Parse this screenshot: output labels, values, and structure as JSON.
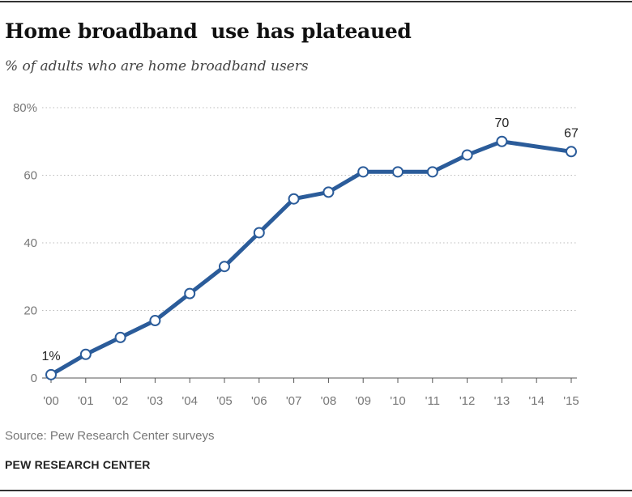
{
  "header": {
    "title": "Home broadband  use has plateaued",
    "subtitle": "% of adults who are home broadband users"
  },
  "footer": {
    "source": "Source: Pew Research Center surveys",
    "brand": "PEW RESEARCH CENTER"
  },
  "colors": {
    "line": "#2b5c9a",
    "grid": "#bbbbbb",
    "axis": "#555555"
  },
  "chart_data": {
    "type": "line",
    "title": "Home broadband  use has plateaued",
    "subtitle": "% of adults who are home broadband users",
    "categories": [
      "'00",
      "'01",
      "'02",
      "'03",
      "'04",
      "'05",
      "'06",
      "'07",
      "'08",
      "'09",
      "'10",
      "'11",
      "'12",
      "'13",
      "'14",
      "'15"
    ],
    "x": [
      2000,
      2001,
      2002,
      2003,
      2004,
      2005,
      2006,
      2007,
      2008,
      2009,
      2010,
      2011,
      2012,
      2013,
      2014,
      2015
    ],
    "series": [
      {
        "values": [
          1,
          7,
          12,
          17,
          25,
          33,
          43,
          53,
          55,
          61,
          61,
          61,
          66,
          70,
          null,
          67
        ],
        "markers": true
      }
    ],
    "y_ticks": [
      0,
      20,
      40,
      60,
      80
    ],
    "y_tick_labels": [
      "0",
      "20",
      "40",
      "60",
      "80%"
    ],
    "ylim": [
      0,
      80
    ],
    "grid": true,
    "data_labels": [
      {
        "x": 2000,
        "text": "1%"
      },
      {
        "x": 2013,
        "text": "70"
      },
      {
        "x": 2015,
        "text": "67"
      }
    ],
    "legend": "none"
  }
}
